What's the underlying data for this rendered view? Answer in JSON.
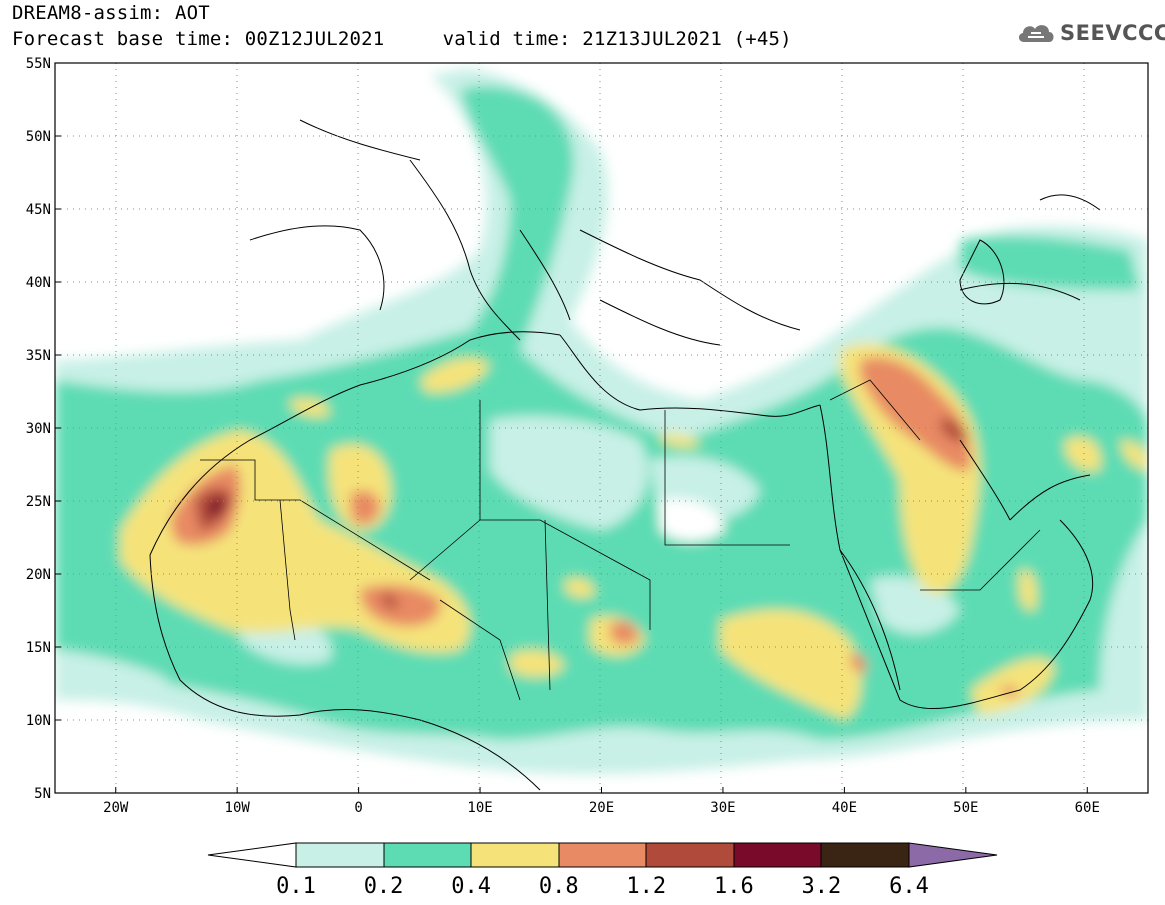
{
  "header": {
    "title_line1": "DREAM8-assim: AOT",
    "title_line2": "Forecast base time: 00Z12JUL2021     valid time: 21Z13JUL2021 (+45)"
  },
  "logo": {
    "text": "SEEVCCC",
    "icon": "cloud-icon"
  },
  "map": {
    "lon_range": [
      -25,
      65
    ],
    "lat_range": [
      5,
      55
    ],
    "grid": "dotted",
    "lon_ticks": [
      {
        "value": -20,
        "label": "20W"
      },
      {
        "value": -10,
        "label": "10W"
      },
      {
        "value": 0,
        "label": "0"
      },
      {
        "value": 10,
        "label": "10E"
      },
      {
        "value": 20,
        "label": "20E"
      },
      {
        "value": 30,
        "label": "30E"
      },
      {
        "value": 40,
        "label": "40E"
      },
      {
        "value": 50,
        "label": "50E"
      },
      {
        "value": 60,
        "label": "60E"
      }
    ],
    "lat_ticks": [
      {
        "value": 5,
        "label": "5N"
      },
      {
        "value": 10,
        "label": "10N"
      },
      {
        "value": 15,
        "label": "15N"
      },
      {
        "value": 20,
        "label": "20N"
      },
      {
        "value": 25,
        "label": "25N"
      },
      {
        "value": 30,
        "label": "30N"
      },
      {
        "value": 35,
        "label": "35N"
      },
      {
        "value": 40,
        "label": "40N"
      },
      {
        "value": 45,
        "label": "45N"
      },
      {
        "value": 50,
        "label": "50N"
      },
      {
        "value": 55,
        "label": "55N"
      }
    ]
  },
  "colorbar": {
    "labels": [
      "0.1",
      "0.2",
      "0.4",
      "0.8",
      "1.2",
      "1.6",
      "3.2",
      "6.4"
    ],
    "colors": [
      "#ffffff",
      "#c8f0e6",
      "#5ddcb4",
      "#f5e37a",
      "#e88a64",
      "#b04a3a",
      "#7a0a2a",
      "#3a2414",
      "#8c6aa8"
    ]
  }
}
